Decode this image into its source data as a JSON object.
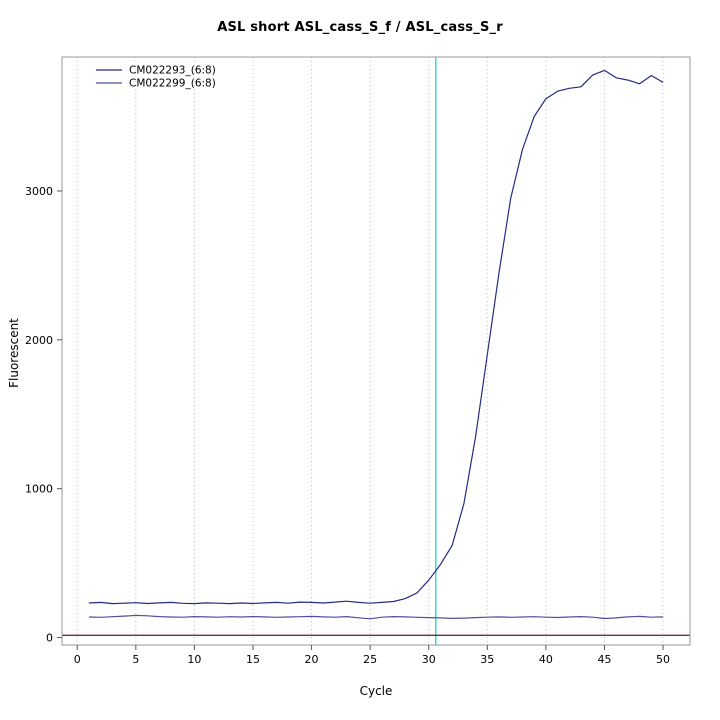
{
  "chart_data": {
    "type": "line",
    "title": "ASL short ASL_cass_S_f / ASL_cass_S_r",
    "xlabel": "Cycle",
    "ylabel": "Fluorescent",
    "xlim": [
      -1.3,
      52.3
    ],
    "ylim": [
      -50,
      3900
    ],
    "xticks": [
      0,
      5,
      10,
      15,
      20,
      25,
      30,
      35,
      40,
      45,
      50
    ],
    "yticks": [
      0,
      1000,
      2000,
      3000
    ],
    "grid": "dotted-vertical",
    "legend_position": "top-left",
    "frame_color": "#9a9a9a",
    "grid_color": "#bdbdbd",
    "ct_line": {
      "x": 30.6,
      "color": "#00e0e0"
    },
    "threshold_line": {
      "y": 15,
      "color": "#733030"
    },
    "x": [
      1,
      2,
      3,
      4,
      5,
      6,
      7,
      8,
      9,
      10,
      11,
      12,
      13,
      14,
      15,
      16,
      17,
      18,
      19,
      20,
      21,
      22,
      23,
      24,
      25,
      26,
      27,
      28,
      29,
      30,
      31,
      32,
      33,
      34,
      35,
      36,
      37,
      38,
      39,
      40,
      41,
      42,
      43,
      44,
      45,
      46,
      47,
      48,
      49,
      50
    ],
    "series": [
      {
        "name": "CM022293_(6:8)",
        "color": "#242c85",
        "values": [
          232,
          236,
          228,
          231,
          234,
          229,
          233,
          236,
          230,
          228,
          233,
          231,
          228,
          232,
          229,
          233,
          236,
          231,
          238,
          236,
          232,
          238,
          244,
          236,
          231,
          236,
          242,
          262,
          300,
          385,
          490,
          620,
          900,
          1350,
          1900,
          2450,
          2950,
          3280,
          3500,
          3620,
          3670,
          3690,
          3700,
          3780,
          3810,
          3760,
          3745,
          3720,
          3775,
          3730
        ]
      },
      {
        "name": "CM022299_(6:8)",
        "color": "#4f4f9f",
        "values": [
          138,
          136,
          140,
          144,
          149,
          146,
          141,
          138,
          137,
          141,
          139,
          137,
          140,
          138,
          141,
          139,
          136,
          138,
          140,
          142,
          139,
          137,
          141,
          133,
          126,
          137,
          141,
          139,
          136,
          134,
          132,
          129,
          131,
          134,
          137,
          139,
          136,
          138,
          140,
          137,
          135,
          138,
          141,
          137,
          128,
          132,
          139,
          142,
          137,
          139
        ]
      }
    ]
  }
}
